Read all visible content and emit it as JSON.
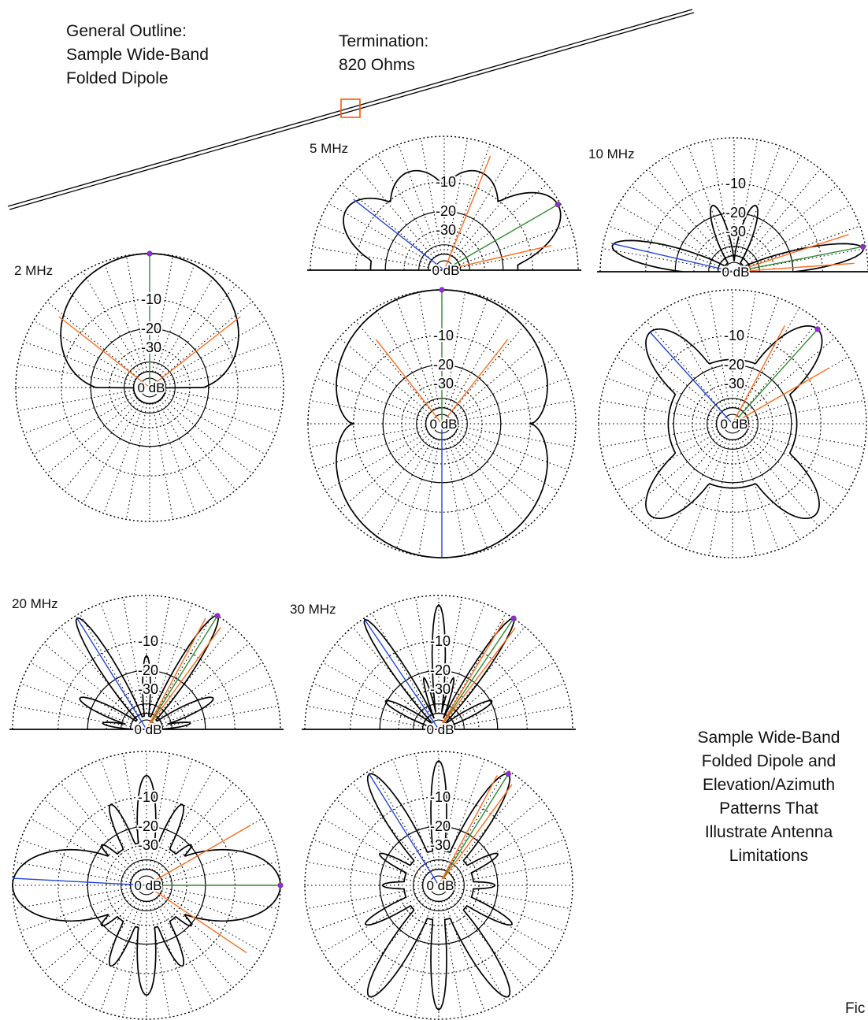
{
  "outline": {
    "lines": [
      "General Outline:",
      "Sample Wide-Band",
      "Folded Dipole"
    ]
  },
  "termination": {
    "lines": [
      "Termination:",
      "820 Ohms"
    ]
  },
  "caption": {
    "lines": [
      "Sample Wide-Band",
      "Folded Dipole and",
      "Elevation/Azimuth",
      "Patterns That",
      "Illustrate Antenna",
      "Limitations"
    ]
  },
  "figure_label": "Fic",
  "ring_labels": [
    "0 dB",
    "-10",
    "-20",
    "-30"
  ],
  "frequencies": [
    "2 MHz",
    "5 MHz",
    "10 MHz",
    "20 MHz",
    "30 MHz"
  ],
  "colors": {
    "pattern": "#000000",
    "grid": "#000000",
    "cursor_main": "#2e8b2e",
    "cursor_half_power": "#ff6a1a",
    "cursor_rear": "#2244dd",
    "feed_marker": "#ff5500",
    "peak_marker": "#a020f0"
  },
  "icons": {
    "feed": "feed-square-icon",
    "peak": "peak-dot-icon"
  }
}
